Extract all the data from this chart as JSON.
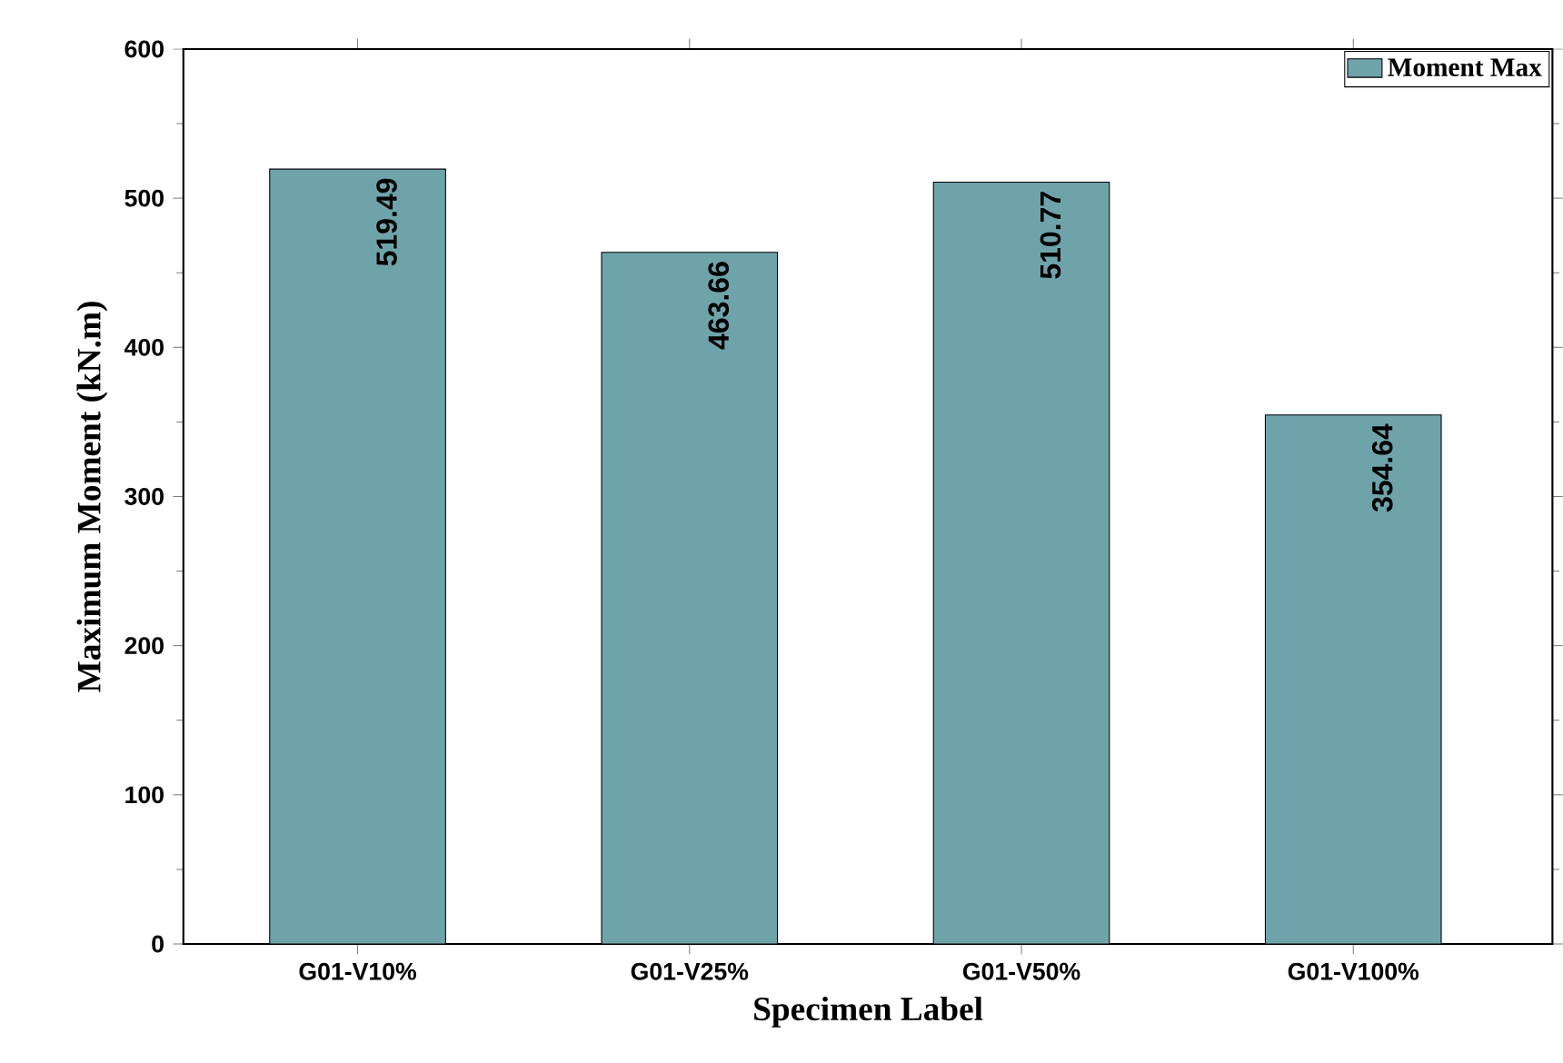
{
  "chart_data": {
    "type": "bar",
    "xlabel": "Specimen Label",
    "ylabel": "Maximum Moment (kN.m)",
    "categories": [
      "G01-V10%",
      "G01-V25%",
      "G01-V50%",
      "G01-V100%"
    ],
    "series": [
      {
        "name": "Moment Max",
        "color": "#6fa3aa",
        "values": [
          519.49,
          463.66,
          510.77,
          354.64
        ],
        "value_labels": [
          "519.49",
          "463.66",
          "510.77",
          "354.64"
        ]
      }
    ],
    "ylim": [
      0,
      600
    ],
    "yticks": [
      0,
      100,
      200,
      300,
      400,
      500,
      600
    ],
    "legend": "top right",
    "grid": false
  }
}
